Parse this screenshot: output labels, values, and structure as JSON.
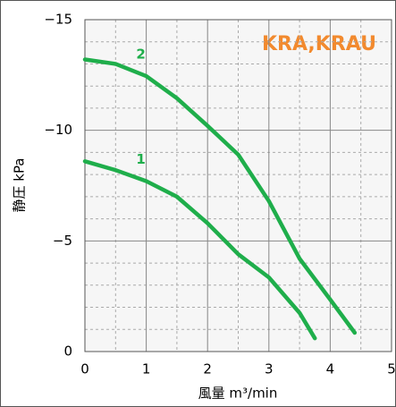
{
  "chart_data": {
    "type": "line",
    "title": "KRA,KRAU",
    "xlabel": "風量 m³/min",
    "ylabel": "静圧 kPa",
    "xlim": [
      0,
      5
    ],
    "xticks": [
      0,
      1,
      2,
      3,
      4,
      5
    ],
    "ylim": [
      0,
      -15
    ],
    "yticks": [
      {
        "value": -15,
        "label": "−15"
      },
      {
        "value": -10,
        "label": "−10"
      },
      {
        "value": -5,
        "label": "−5"
      },
      0
    ],
    "minor_xticks": [
      0.5,
      1.5,
      2.5,
      3.5,
      4.5
    ],
    "minor_yticks": [
      -14,
      -13,
      -12,
      -11,
      -9,
      -8,
      -7,
      -6,
      -4,
      -3,
      -2,
      -1
    ],
    "grid": true,
    "series": [
      {
        "name": "1",
        "color": "#1fae4b",
        "x": [
          0,
          0.5,
          1,
          1.5,
          2,
          2.5,
          3,
          3.5,
          3.75
        ],
        "values": [
          -8.6,
          -8.2,
          -7.7,
          -7.0,
          -5.8,
          -4.4,
          -3.35,
          -1.75,
          -0.6
        ]
      },
      {
        "name": "2",
        "color": "#1fae4b",
        "x": [
          0,
          0.5,
          1,
          1.5,
          2,
          2.5,
          3,
          3.5,
          4,
          4.4
        ],
        "values": [
          -13.2,
          -13.0,
          -12.45,
          -11.45,
          -10.2,
          -8.9,
          -6.8,
          -4.2,
          -2.35,
          -0.85
        ]
      }
    ]
  }
}
